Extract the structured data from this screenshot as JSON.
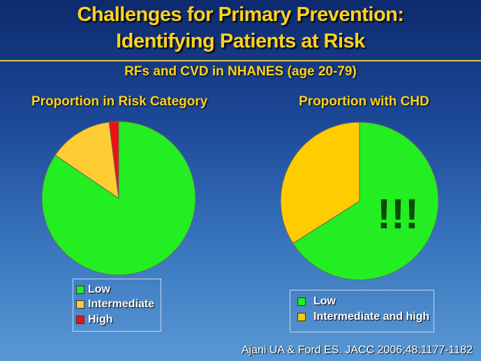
{
  "slide": {
    "title_line1": "Challenges for Primary Prevention:",
    "title_line2": "Identifying Patients at Risk",
    "subtitle": "RFs and CVD in NHANES (age 20-79)",
    "citation": "Ajani UA & Ford ES. JACC 2006;48:1177-1182",
    "annotation": "!!!"
  },
  "chart_data": [
    {
      "type": "pie",
      "title": "Proportion in Risk Category",
      "categories": [
        "Low",
        "Intermediate",
        "High"
      ],
      "values": [
        84.5,
        13.5,
        2
      ],
      "colors": [
        "#22ee22",
        "#ffcc33",
        "#ee1111"
      ],
      "legend": "bottom"
    },
    {
      "type": "pie",
      "title": "Proportion with CHD",
      "categories": [
        "Low",
        "Intermediate and high"
      ],
      "values": [
        66,
        34
      ],
      "colors": [
        "#22ee22",
        "#ffcc00"
      ],
      "legend": "bottom"
    }
  ]
}
